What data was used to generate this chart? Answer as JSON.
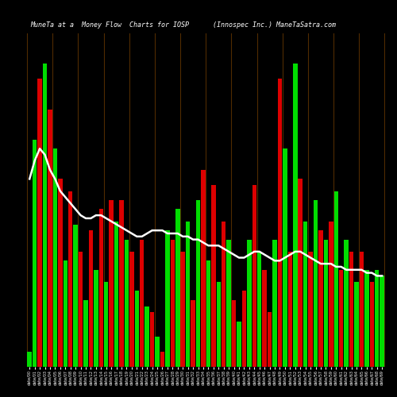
{
  "title_left": "MuneTa at a  Money Flow  Charts for IOSP",
  "title_right": "(Innospec Inc.) ManeTaSatra.com",
  "background_color": "#000000",
  "line_color": "#ffffff",
  "bar_separator_color": "#5a3000",
  "bar_heights": [
    5,
    75,
    95,
    100,
    85,
    72,
    62,
    35,
    58,
    47,
    38,
    22,
    45,
    32,
    52,
    28,
    55,
    48,
    55,
    42,
    38,
    25,
    42,
    20,
    18,
    10,
    5,
    45,
    42,
    52,
    38,
    48,
    22,
    55,
    65,
    35,
    60,
    28,
    48,
    42,
    22,
    15,
    25,
    42,
    60,
    38,
    32,
    18,
    42,
    95,
    72,
    38,
    100,
    62,
    48,
    38,
    55,
    45,
    42,
    48,
    58,
    32,
    42,
    38,
    28,
    38,
    32,
    28,
    32,
    30
  ],
  "bar_colors": [
    "green",
    "green",
    "red",
    "green",
    "red",
    "green",
    "red",
    "green",
    "red",
    "green",
    "red",
    "green",
    "red",
    "green",
    "red",
    "green",
    "red",
    "green",
    "red",
    "green",
    "red",
    "green",
    "red",
    "green",
    "red",
    "green",
    "red",
    "green",
    "red",
    "green",
    "red",
    "green",
    "red",
    "green",
    "red",
    "green",
    "red",
    "green",
    "red",
    "green",
    "red",
    "green",
    "red",
    "green",
    "red",
    "green",
    "red",
    "red",
    "green",
    "red",
    "green",
    "red",
    "green",
    "red",
    "green",
    "red",
    "green",
    "red",
    "green",
    "red",
    "green",
    "red",
    "green",
    "red",
    "green",
    "red",
    "green",
    "red",
    "green",
    "green"
  ],
  "line_y": [
    62,
    68,
    72,
    70,
    65,
    62,
    58,
    56,
    54,
    52,
    50,
    49,
    49,
    50,
    50,
    49,
    48,
    47,
    46,
    45,
    44,
    43,
    43,
    44,
    45,
    45,
    45,
    44,
    44,
    44,
    43,
    43,
    42,
    42,
    41,
    40,
    40,
    40,
    39,
    38,
    37,
    36,
    36,
    37,
    38,
    38,
    37,
    36,
    35,
    35,
    36,
    37,
    38,
    38,
    37,
    36,
    35,
    34,
    34,
    34,
    33,
    33,
    32,
    32,
    32,
    32,
    31,
    31,
    30,
    30
  ],
  "n_separators_interval": 5,
  "xlabel_fontsize": 4,
  "title_fontsize": 7,
  "ylim": [
    0,
    110
  ]
}
